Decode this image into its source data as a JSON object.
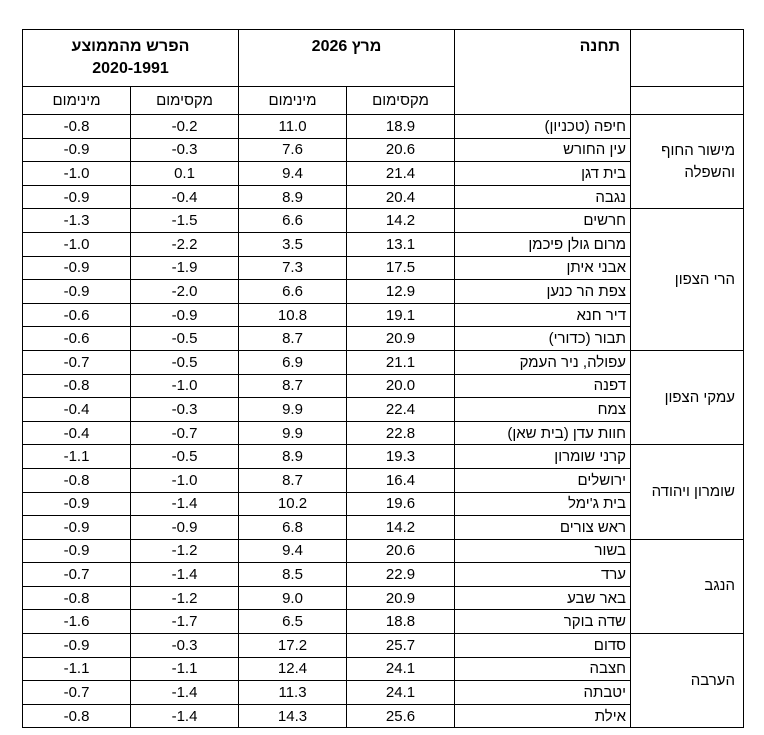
{
  "header": {
    "station": "תחנה",
    "march": "מרץ 2026",
    "diff_line1": "הפרש מהממוצע",
    "diff_line2": "2020-1991",
    "max": "מקסימום",
    "min": "מינימום"
  },
  "groups": [
    {
      "region": "מישור החוף והשפלה",
      "rows": [
        {
          "station": "חיפה (טכניון)",
          "max": "18.9",
          "min": "11.0",
          "dmax": "-0.2",
          "dmin": "-0.8"
        },
        {
          "station": "עין החורש",
          "max": "20.6",
          "min": "7.6",
          "dmax": "-0.3",
          "dmin": "-0.9"
        },
        {
          "station": "בית דגן",
          "max": "21.4",
          "min": "9.4",
          "dmax": "0.1",
          "dmin": "-1.0"
        },
        {
          "station": "נגבה",
          "max": "20.4",
          "min": "8.9",
          "dmax": "-0.4",
          "dmin": "-0.9"
        }
      ]
    },
    {
      "region": "הרי הצפון",
      "rows": [
        {
          "station": "חרשים",
          "max": "14.2",
          "min": "6.6",
          "dmax": "-1.5",
          "dmin": "-1.3"
        },
        {
          "station": "מרום גולן פיכמן",
          "max": "13.1",
          "min": "3.5",
          "dmax": "-2.2",
          "dmin": "-1.0"
        },
        {
          "station": "אבני איתן",
          "max": "17.5",
          "min": "7.3",
          "dmax": "-1.9",
          "dmin": "-0.9"
        },
        {
          "station": "צפת הר כנען",
          "max": "12.9",
          "min": "6.6",
          "dmax": "-2.0",
          "dmin": "-0.9"
        },
        {
          "station": "דיר חנא",
          "max": "19.1",
          "min": "10.8",
          "dmax": "-0.9",
          "dmin": "-0.6"
        },
        {
          "station": "תבור (כדורי)",
          "max": "20.9",
          "min": "8.7",
          "dmax": "-0.5",
          "dmin": "-0.6"
        }
      ]
    },
    {
      "region": "עמקי הצפון",
      "rows": [
        {
          "station": "עפולה, ניר העמק",
          "max": "21.1",
          "min": "6.9",
          "dmax": "-0.5",
          "dmin": "-0.7"
        },
        {
          "station": "דפנה",
          "max": "20.0",
          "min": "8.7",
          "dmax": "-1.0",
          "dmin": "-0.8"
        },
        {
          "station": "צמח",
          "max": "22.4",
          "min": "9.9",
          "dmax": "-0.3",
          "dmin": "-0.4"
        },
        {
          "station": "חוות עדן (בית שאן)",
          "max": "22.8",
          "min": "9.9",
          "dmax": "-0.7",
          "dmin": "-0.4"
        }
      ]
    },
    {
      "region": "שומרון ויהודה",
      "rows": [
        {
          "station": "קרני שומרון",
          "max": "19.3",
          "min": "8.9",
          "dmax": "-0.5",
          "dmin": "-1.1"
        },
        {
          "station": "ירושלים",
          "max": "16.4",
          "min": "8.7",
          "dmax": "-1.0",
          "dmin": "-0.8"
        },
        {
          "station": "בית ג'ימל",
          "max": "19.6",
          "min": "10.2",
          "dmax": "-1.4",
          "dmin": "-0.9"
        },
        {
          "station": "ראש צורים",
          "max": "14.2",
          "min": "6.8",
          "dmax": "-0.9",
          "dmin": "-0.9"
        }
      ]
    },
    {
      "region": "הנגב",
      "rows": [
        {
          "station": "בשור",
          "max": "20.6",
          "min": "9.4",
          "dmax": "-1.2",
          "dmin": "-0.9"
        },
        {
          "station": "ערד",
          "max": "22.9",
          "min": "8.5",
          "dmax": "-1.4",
          "dmin": "-0.7"
        },
        {
          "station": "באר שבע",
          "max": "20.9",
          "min": "9.0",
          "dmax": "-1.2",
          "dmin": "-0.8"
        },
        {
          "station": "שדה בוקר",
          "max": "18.8",
          "min": "6.5",
          "dmax": "-1.7",
          "dmin": "-1.6"
        }
      ]
    },
    {
      "region": "הערבה",
      "rows": [
        {
          "station": "סדום",
          "max": "25.7",
          "min": "17.2",
          "dmax": "-0.3",
          "dmin": "-0.9"
        },
        {
          "station": "חצבה",
          "max": "24.1",
          "min": "12.4",
          "dmax": "-1.1",
          "dmin": "-1.1"
        },
        {
          "station": "יטבתה",
          "max": "24.1",
          "min": "11.3",
          "dmax": "-1.4",
          "dmin": "-0.7"
        },
        {
          "station": "אילת",
          "max": "25.6",
          "min": "14.3",
          "dmax": "-1.4",
          "dmin": "-0.8"
        }
      ]
    }
  ]
}
